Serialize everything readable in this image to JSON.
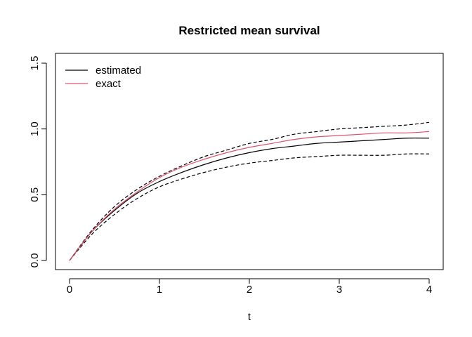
{
  "chart_data": {
    "type": "line",
    "title": "Restricted mean survival",
    "xlabel": "t",
    "ylabel": "",
    "xlim": [
      0,
      4
    ],
    "ylim": [
      0,
      1.5
    ],
    "xticks": [
      "0",
      "1",
      "2",
      "3",
      "4"
    ],
    "yticks": [
      "0.0",
      "0.5",
      "1.0",
      "1.5"
    ],
    "legend_position": "top-left",
    "grid": false,
    "series": [
      {
        "name": "estimated",
        "color": "#000000",
        "style": "solid",
        "x": [
          0,
          0.25,
          0.5,
          0.75,
          1.0,
          1.25,
          1.5,
          1.75,
          2.0,
          2.25,
          2.5,
          2.75,
          3.0,
          3.25,
          3.5,
          3.75,
          4.0
        ],
        "values": [
          0,
          0.22,
          0.38,
          0.51,
          0.6,
          0.67,
          0.73,
          0.78,
          0.82,
          0.85,
          0.87,
          0.89,
          0.9,
          0.91,
          0.92,
          0.93,
          0.93
        ]
      },
      {
        "name": "exact",
        "color": "#DF536B",
        "style": "solid",
        "x": [
          0,
          0.25,
          0.5,
          0.75,
          1.0,
          1.25,
          1.5,
          1.75,
          2.0,
          2.25,
          2.5,
          2.75,
          3.0,
          3.25,
          3.5,
          3.75,
          4.0
        ],
        "values": [
          0,
          0.22,
          0.39,
          0.52,
          0.63,
          0.71,
          0.77,
          0.82,
          0.86,
          0.89,
          0.92,
          0.94,
          0.95,
          0.96,
          0.97,
          0.97,
          0.98
        ]
      },
      {
        "name": "",
        "color": "#000000",
        "style": "dashed",
        "x": [
          0,
          0.25,
          0.5,
          0.75,
          1.0,
          1.25,
          1.5,
          1.75,
          2.0,
          2.25,
          2.5,
          2.75,
          3.0,
          3.25,
          3.5,
          3.75,
          4.0
        ],
        "values": [
          0,
          0.23,
          0.41,
          0.54,
          0.64,
          0.72,
          0.79,
          0.84,
          0.89,
          0.92,
          0.96,
          0.98,
          1.0,
          1.01,
          1.02,
          1.03,
          1.05
        ]
      },
      {
        "name": "",
        "color": "#000000",
        "style": "dashed",
        "x": [
          0,
          0.25,
          0.5,
          0.75,
          1.0,
          1.25,
          1.5,
          1.75,
          2.0,
          2.25,
          2.5,
          2.75,
          3.0,
          3.25,
          3.5,
          3.75,
          4.0
        ],
        "values": [
          0,
          0.2,
          0.35,
          0.47,
          0.56,
          0.62,
          0.67,
          0.71,
          0.74,
          0.76,
          0.78,
          0.79,
          0.8,
          0.8,
          0.8,
          0.81,
          0.81
        ]
      }
    ],
    "legend": [
      {
        "label": "estimated",
        "color": "#000000"
      },
      {
        "label": "exact",
        "color": "#DF536B"
      }
    ]
  }
}
